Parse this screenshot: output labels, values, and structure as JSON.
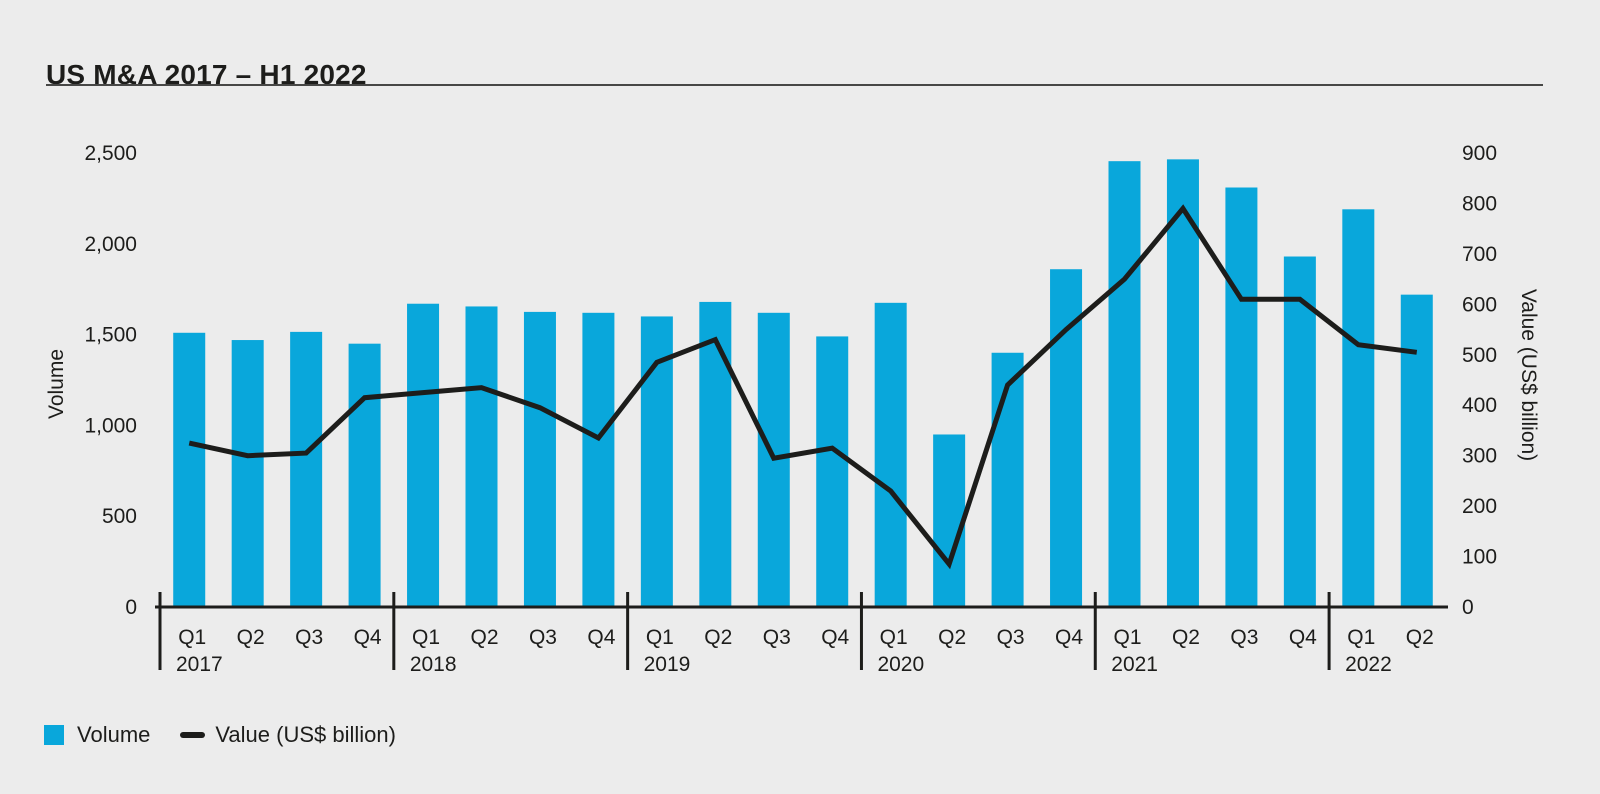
{
  "page": {
    "title": "US M&A 2017 – H1 2022"
  },
  "colors": {
    "background": "#ececec",
    "bar": "#09a7db",
    "line": "#1d1d1b",
    "text": "#1d1d1b",
    "divider": "#474746"
  },
  "legend": {
    "items": [
      {
        "label": "Volume",
        "swatch": "square",
        "color": "#09a7db"
      },
      {
        "label": "Value (US$ billion)",
        "swatch": "line",
        "color": "#1d1d1b"
      }
    ]
  },
  "chart_data": {
    "type": "bar",
    "title": "US M&A 2017 – H1 2022",
    "grid": false,
    "legend_position": "bottom-left",
    "categories": [
      "Q1 2017",
      "Q2 2017",
      "Q3 2017",
      "Q4 2017",
      "Q1 2018",
      "Q2 2018",
      "Q3 2018",
      "Q4 2018",
      "Q1 2019",
      "Q2 2019",
      "Q3 2019",
      "Q4 2019",
      "Q1 2020",
      "Q2 2020",
      "Q3 2020",
      "Q4 2020",
      "Q1 2021",
      "Q2 2021",
      "Q3 2021",
      "Q4 2021",
      "Q1 2022",
      "Q2 2022"
    ],
    "x_label_groups": [
      {
        "year": "2017",
        "quarters": [
          "Q1",
          "Q2",
          "Q3",
          "Q4"
        ]
      },
      {
        "year": "2018",
        "quarters": [
          "Q1",
          "Q2",
          "Q3",
          "Q4"
        ]
      },
      {
        "year": "2019",
        "quarters": [
          "Q1",
          "Q2",
          "Q3",
          "Q4"
        ]
      },
      {
        "year": "2020",
        "quarters": [
          "Q1",
          "Q2",
          "Q3",
          "Q4"
        ]
      },
      {
        "year": "2021",
        "quarters": [
          "Q1",
          "Q2",
          "Q3",
          "Q4"
        ]
      },
      {
        "year": "2022",
        "quarters": [
          "Q1",
          "Q2"
        ]
      }
    ],
    "series": [
      {
        "name": "Volume",
        "type": "bar",
        "axis": "left",
        "values": [
          1510,
          1470,
          1515,
          1450,
          1670,
          1655,
          1625,
          1620,
          1600,
          1680,
          1620,
          1490,
          1675,
          950,
          1400,
          1860,
          2455,
          2465,
          2310,
          1930,
          2190,
          1720
        ]
      },
      {
        "name": "Value (US$ billion)",
        "type": "line",
        "axis": "right",
        "values": [
          325,
          300,
          305,
          415,
          425,
          435,
          395,
          335,
          485,
          530,
          295,
          315,
          230,
          85,
          440,
          550,
          650,
          790,
          610,
          610,
          520,
          505
        ]
      }
    ],
    "left_axis": {
      "title": "Volume",
      "min": 0,
      "max": 2500,
      "tick_step": 500,
      "ticks": [
        "0",
        "500",
        "1,000",
        "1,500",
        "2,000",
        "2,500"
      ]
    },
    "right_axis": {
      "title": "Value (US$ billion)",
      "min": 0,
      "max": 900,
      "tick_step": 100,
      "ticks": [
        "0",
        "100",
        "200",
        "300",
        "400",
        "500",
        "600",
        "700",
        "800",
        "900"
      ]
    }
  }
}
